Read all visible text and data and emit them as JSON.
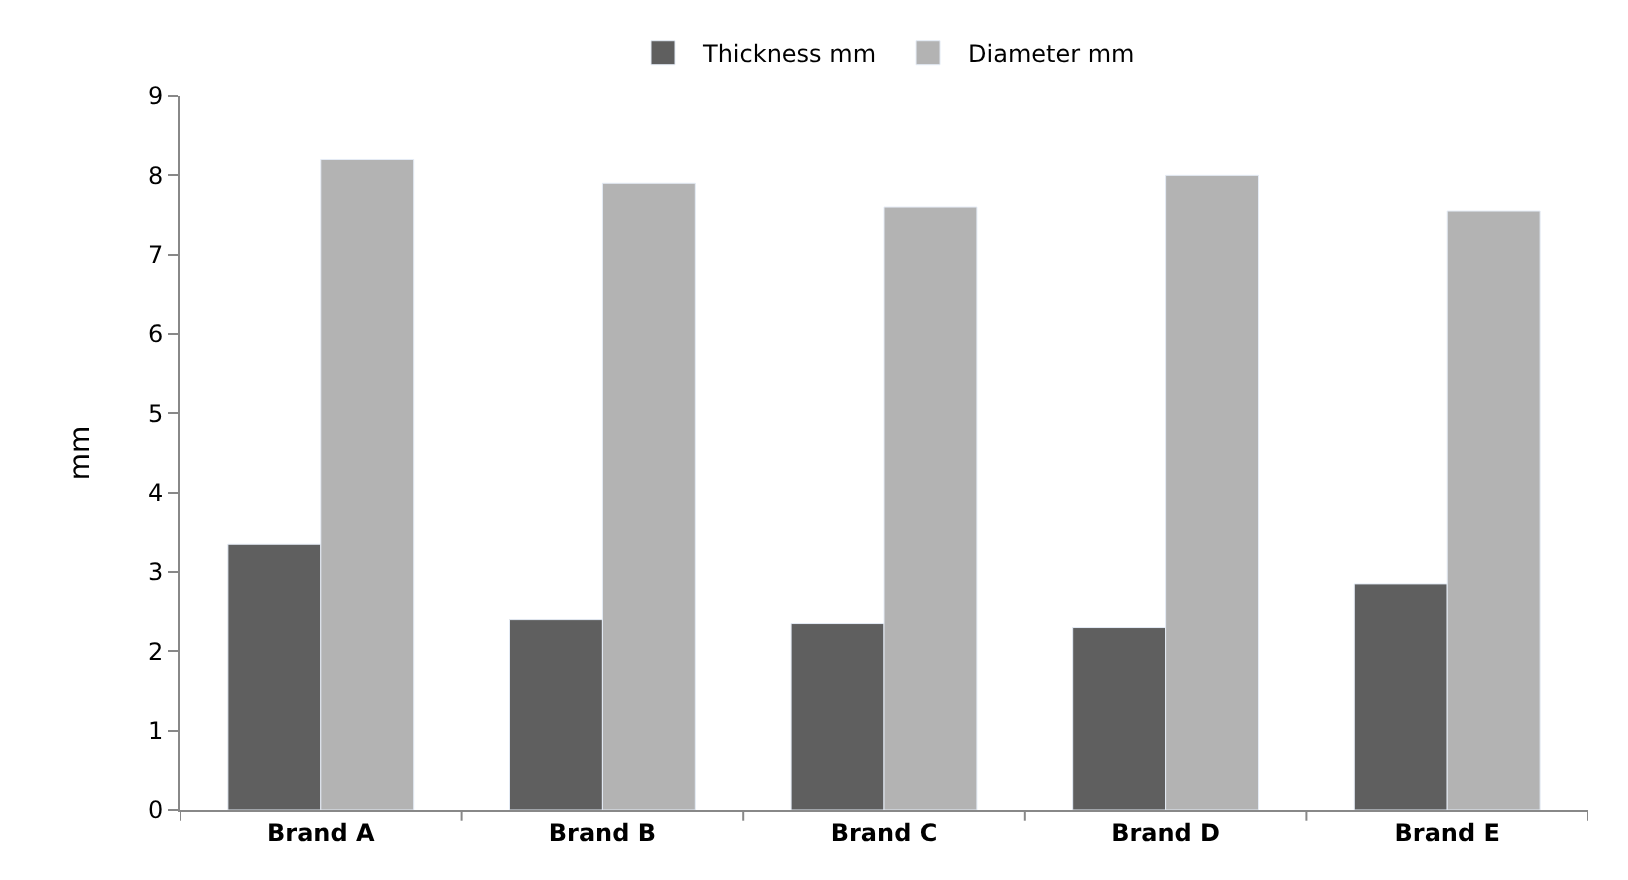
{
  "chart_data": {
    "type": "bar",
    "ylabel": "mm",
    "categories": [
      "Brand A",
      "Brand B",
      "Brand C",
      "Brand D",
      "Brand E"
    ],
    "series": [
      {
        "name": "Thickness mm",
        "color": "#5f5f5f",
        "values": [
          3.35,
          2.4,
          2.35,
          2.3,
          2.85
        ]
      },
      {
        "name": "Diameter mm",
        "color": "#b3b3b3",
        "values": [
          8.2,
          7.9,
          7.6,
          8.0,
          7.55
        ]
      }
    ],
    "ylim": [
      0,
      9
    ],
    "yticks": [
      0,
      1,
      2,
      3,
      4,
      5,
      6,
      7,
      8,
      9
    ],
    "grid": false,
    "legend": "top"
  }
}
